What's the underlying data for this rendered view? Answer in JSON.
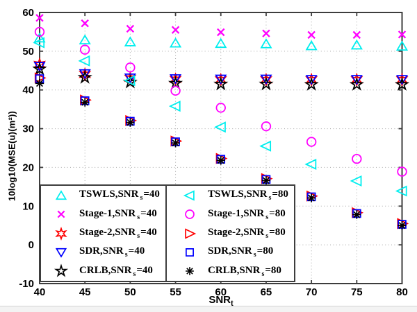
{
  "chart_data": {
    "type": "scatter",
    "title": "",
    "xlabel": {
      "text": "SNR",
      "sub": "t"
    },
    "ylabel": "10log10(MSE(u)(m²))",
    "xlim": [
      40,
      80
    ],
    "ylim": [
      -10,
      60
    ],
    "xticks": [
      40,
      45,
      50,
      55,
      60,
      65,
      70,
      75,
      80
    ],
    "yticks": [
      -10,
      0,
      10,
      20,
      30,
      40,
      50,
      60
    ],
    "grid": "dotted",
    "x": [
      40,
      45,
      50,
      55,
      60,
      65,
      70,
      75,
      80
    ],
    "series": [
      {
        "name": "TSWLS,SNR_s=40",
        "label_pre": "TSWLS,SNR",
        "label_sub": "s",
        "label_post": "=40",
        "marker": "triangle-up",
        "color": "#00EEEE",
        "legend_group": 0,
        "values": [
          53.4,
          52.9,
          52.4,
          52.1,
          52.0,
          51.9,
          51.4,
          51.6,
          51.3
        ]
      },
      {
        "name": "Stage-1,SNR_s=40",
        "label_pre": "Stage-1,SNR",
        "label_sub": "s",
        "label_post": "=40",
        "marker": "x",
        "color": "#FF00FF",
        "legend_group": 0,
        "values": [
          58.6,
          57.2,
          55.8,
          55.5,
          54.9,
          54.6,
          54.2,
          54.2,
          54.3
        ]
      },
      {
        "name": "Stage-2,SNR_s=40",
        "label_pre": "Stage-2,SNR",
        "label_sub": "s",
        "label_post": "=40",
        "marker": "hexagram",
        "color": "#FF0000",
        "legend_group": 0,
        "values": [
          46.6,
          44.0,
          43.0,
          42.7,
          42.6,
          42.6,
          42.6,
          42.6,
          42.6
        ]
      },
      {
        "name": "SDR,SNR_s=40",
        "label_pre": "SDR,SNR",
        "label_sub": "s",
        "label_post": "=40",
        "marker": "triangle-down",
        "color": "#0000FF",
        "legend_group": 0,
        "values": [
          46.1,
          44.2,
          43.1,
          42.9,
          42.8,
          42.8,
          42.7,
          42.7,
          42.7
        ]
      },
      {
        "name": "CRLB,SNR_s=40",
        "label_pre": "CRLB,SNR",
        "label_sub": "s",
        "label_post": "=40",
        "marker": "star5",
        "color": "#000000",
        "legend_group": 0,
        "values": [
          45.4,
          43.2,
          42.0,
          41.7,
          41.5,
          41.5,
          41.4,
          41.4,
          41.4
        ]
      },
      {
        "name": "TSWLS,SNR_s=80",
        "label_pre": "TSWLS,SNR",
        "label_sub": "s",
        "label_post": "=80",
        "marker": "triangle-left",
        "color": "#00EEEE",
        "legend_group": 1,
        "values": [
          52.2,
          47.5,
          42.4,
          35.8,
          30.4,
          25.5,
          20.8,
          16.5,
          13.9
        ]
      },
      {
        "name": "Stage-1,SNR_s=80",
        "label_pre": "Stage-1,SNR",
        "label_sub": "s",
        "label_post": "=80",
        "marker": "circle",
        "color": "#FF00FF",
        "legend_group": 1,
        "values": [
          55.0,
          50.4,
          45.8,
          39.8,
          35.4,
          30.6,
          26.6,
          22.2,
          18.9
        ]
      },
      {
        "name": "Stage-2,SNR_s=80",
        "label_pre": "Stage-2,SNR",
        "label_sub": "s",
        "label_post": "=80",
        "marker": "triangle-right",
        "color": "#FF0000",
        "legend_group": 1,
        "values": [
          43.1,
          37.4,
          32.1,
          26.8,
          22.3,
          17.1,
          12.6,
          8.3,
          5.5
        ]
      },
      {
        "name": "SDR,SNR_s=80",
        "label_pre": "SDR,SNR",
        "label_sub": "s",
        "label_post": "=80",
        "marker": "square",
        "color": "#0000FF",
        "legend_group": 1,
        "values": [
          42.9,
          37.2,
          31.9,
          26.6,
          22.1,
          16.9,
          12.4,
          8.1,
          5.3
        ]
      },
      {
        "name": "CRLB,SNR_s=80",
        "label_pre": "CRLB,SNR",
        "label_sub": "s",
        "label_post": "=80",
        "marker": "asterisk",
        "color": "#000000",
        "legend_group": 1,
        "values": [
          41.7,
          36.8,
          31.6,
          26.3,
          21.8,
          16.6,
          12.1,
          7.8,
          5.0
        ]
      }
    ],
    "legend": {
      "position": "bottom, two boxes side by side inside axes"
    }
  }
}
